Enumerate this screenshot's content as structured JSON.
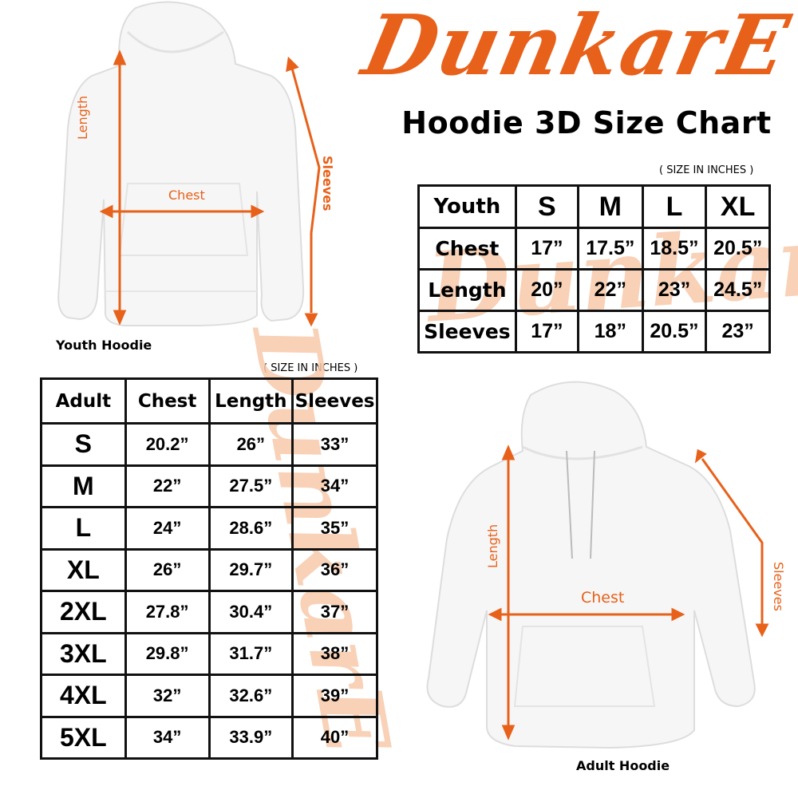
{
  "brand": {
    "logo": "DunkarE",
    "color": "#e8611a"
  },
  "title": "Hoodie 3D Size Chart",
  "youth": {
    "image_caption": "Youth Hoodie",
    "labels": {
      "length": "Length",
      "chest": "Chest",
      "sleeves": "Sleeves"
    },
    "units_note": "( SIZE IN INCHES )",
    "headers": [
      "Youth",
      "S",
      "M",
      "L",
      "XL"
    ],
    "rows": [
      [
        "Chest",
        "17”",
        "17.5”",
        "18.5”",
        "20.5”"
      ],
      [
        "Length",
        "20”",
        "22”",
        "23”",
        "24.5”"
      ],
      [
        "Sleeves",
        "17”",
        "18”",
        "20.5”",
        "23”"
      ]
    ]
  },
  "adult": {
    "image_caption": "Adult Hoodie",
    "labels": {
      "length": "Length",
      "chest": "Chest",
      "sleeves": "Sleeves"
    },
    "units_note": "( SIZE IN INCHES )",
    "headers": [
      "Adult",
      "Chest",
      "Length",
      "Sleeves"
    ],
    "rows": [
      [
        "S",
        "20.2”",
        "26”",
        "33”"
      ],
      [
        "M",
        "22”",
        "27.5”",
        "34”"
      ],
      [
        "L",
        "24”",
        "28.6”",
        "35”"
      ],
      [
        "XL",
        "26”",
        "29.7”",
        "36”"
      ],
      [
        "2XL",
        "27.8”",
        "30.4”",
        "37”"
      ],
      [
        "3XL",
        "29.8”",
        "31.7”",
        "38”"
      ],
      [
        "4XL",
        "32”",
        "32.6”",
        "39”"
      ],
      [
        "5XL",
        "34”",
        "33.9”",
        "40”"
      ]
    ]
  }
}
